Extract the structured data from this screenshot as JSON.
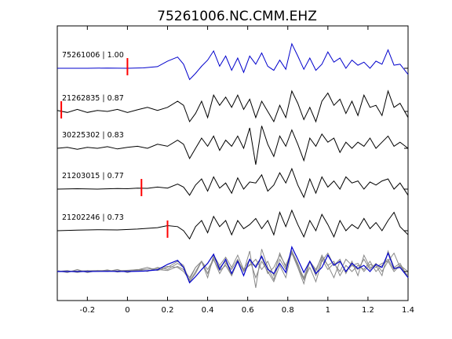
{
  "chart_data": {
    "type": "line",
    "title": "75261006.NC.CMM.EHZ",
    "xlabel": "",
    "ylabel": "",
    "xlim": [
      -0.35,
      1.4
    ],
    "xticks": [
      -0.2,
      0,
      0.2,
      0.4,
      0.6,
      0.8,
      1,
      1.2,
      1.4
    ],
    "xtick_labels": [
      "-0.2",
      "0",
      "0.2",
      "0.4",
      "0.6",
      "0.8",
      "1",
      "1.2",
      "1.4"
    ],
    "grid": false,
    "legend": "none",
    "colors": {
      "primary": "#0000cc",
      "trace": "#000000",
      "overlay": "#888888",
      "pick": "#ff0000"
    },
    "series": [
      {
        "label": "75261006 | 1.00",
        "pick": 0.0,
        "color": "#0000cc",
        "x": [
          -0.35,
          -0.2,
          -0.1,
          0,
          0.08,
          0.15,
          0.2,
          0.25,
          0.28,
          0.31,
          0.34,
          0.37,
          0.4,
          0.43,
          0.46,
          0.49,
          0.52,
          0.55,
          0.58,
          0.61,
          0.64,
          0.67,
          0.7,
          0.73,
          0.76,
          0.79,
          0.82,
          0.85,
          0.88,
          0.91,
          0.94,
          0.97,
          1,
          1.03,
          1.06,
          1.09,
          1.12,
          1.15,
          1.18,
          1.21,
          1.24,
          1.27,
          1.3,
          1.33,
          1.36,
          1.4
        ],
        "y": [
          0,
          0,
          0.01,
          0,
          0.02,
          0.08,
          0.35,
          0.55,
          0.2,
          -0.55,
          -0.25,
          0.1,
          0.4,
          0.85,
          0.1,
          0.6,
          -0.1,
          0.5,
          -0.2,
          0.6,
          0.2,
          0.75,
          0.1,
          -0.1,
          0.4,
          -0.05,
          1.2,
          0.6,
          -0.05,
          0.5,
          -0.1,
          0.2,
          0.8,
          0.3,
          0.5,
          0.0,
          0.4,
          0.15,
          0.3,
          0.0,
          0.35,
          0.2,
          0.9,
          0.15,
          0.2,
          -0.3
        ]
      },
      {
        "label": "21262835 | 0.87",
        "pick": -0.33,
        "color": "#000000",
        "x": [
          -0.35,
          -0.3,
          -0.25,
          -0.2,
          -0.15,
          -0.1,
          -0.05,
          0,
          0.05,
          0.1,
          0.15,
          0.2,
          0.25,
          0.28,
          0.31,
          0.34,
          0.37,
          0.4,
          0.43,
          0.46,
          0.49,
          0.52,
          0.55,
          0.58,
          0.61,
          0.64,
          0.67,
          0.7,
          0.73,
          0.76,
          0.79,
          0.82,
          0.85,
          0.88,
          0.91,
          0.94,
          0.97,
          1,
          1.03,
          1.06,
          1.09,
          1.12,
          1.15,
          1.18,
          1.21,
          1.24,
          1.27,
          1.3,
          1.33,
          1.36,
          1.4
        ],
        "y": [
          0.05,
          -0.05,
          0.1,
          -0.05,
          0.05,
          0.0,
          0.1,
          -0.05,
          0.08,
          0.2,
          0.05,
          0.2,
          0.5,
          0.3,
          -0.5,
          -0.1,
          0.5,
          -0.3,
          0.8,
          0.3,
          0.7,
          0.2,
          0.8,
          0.1,
          0.6,
          -0.3,
          0.5,
          0.0,
          -0.5,
          0.3,
          -0.3,
          1.0,
          0.4,
          -0.4,
          0.2,
          -0.5,
          0.5,
          0.9,
          0.3,
          0.6,
          -0.1,
          0.5,
          -0.2,
          0.8,
          0.2,
          0.3,
          -0.2,
          1.0,
          0.2,
          0.4,
          -0.3
        ]
      },
      {
        "label": "30225302 | 0.83",
        "pick": null,
        "color": "#000000",
        "x": [
          -0.35,
          -0.3,
          -0.25,
          -0.2,
          -0.15,
          -0.1,
          -0.05,
          0,
          0.05,
          0.1,
          0.15,
          0.2,
          0.25,
          0.28,
          0.31,
          0.34,
          0.37,
          0.4,
          0.43,
          0.46,
          0.49,
          0.52,
          0.55,
          0.58,
          0.61,
          0.64,
          0.67,
          0.7,
          0.73,
          0.76,
          0.79,
          0.82,
          0.85,
          0.88,
          0.91,
          0.94,
          0.97,
          1,
          1.03,
          1.06,
          1.09,
          1.12,
          1.15,
          1.18,
          1.21,
          1.24,
          1.27,
          1.3,
          1.33,
          1.36,
          1.4
        ],
        "y": [
          0,
          0.05,
          -0.05,
          0.05,
          0.0,
          0.08,
          -0.03,
          0.05,
          0.1,
          0.0,
          0.2,
          0.1,
          0.4,
          0.2,
          -0.5,
          0.0,
          0.5,
          0.1,
          0.6,
          -0.1,
          0.4,
          0.1,
          0.6,
          0.0,
          1.0,
          -0.8,
          1.1,
          0.2,
          -0.4,
          0.6,
          0.1,
          0.9,
          0.2,
          -0.6,
          0.5,
          0.1,
          0.7,
          0.3,
          0.5,
          -0.2,
          0.3,
          0.0,
          0.3,
          0.1,
          0.5,
          0.0,
          0.3,
          0.6,
          0.1,
          0.3,
          0.0
        ]
      },
      {
        "label": "21203015 | 0.77",
        "pick": 0.07,
        "color": "#000000",
        "x": [
          -0.35,
          -0.25,
          -0.15,
          -0.05,
          0,
          0.05,
          0.1,
          0.15,
          0.2,
          0.25,
          0.28,
          0.31,
          0.34,
          0.37,
          0.4,
          0.43,
          0.46,
          0.49,
          0.52,
          0.55,
          0.58,
          0.61,
          0.64,
          0.67,
          0.7,
          0.73,
          0.76,
          0.79,
          0.82,
          0.85,
          0.88,
          0.91,
          0.94,
          0.97,
          1,
          1.03,
          1.06,
          1.09,
          1.12,
          1.15,
          1.18,
          1.21,
          1.24,
          1.27,
          1.3,
          1.33,
          1.36,
          1.4
        ],
        "y": [
          0,
          0.02,
          0.0,
          0.03,
          0.02,
          0.05,
          0.04,
          0.1,
          0.05,
          0.25,
          0.1,
          -0.3,
          0.2,
          0.5,
          -0.1,
          0.6,
          0.05,
          0.3,
          -0.2,
          0.55,
          0.0,
          0.35,
          0.3,
          0.7,
          -0.1,
          0.2,
          0.8,
          0.3,
          1.0,
          0.2,
          -0.4,
          0.5,
          -0.2,
          0.6,
          0.1,
          0.4,
          0.0,
          0.6,
          0.3,
          0.4,
          0.0,
          0.35,
          0.2,
          0.4,
          0.5,
          0.0,
          0.3,
          -0.3
        ]
      },
      {
        "label": "21202246 | 0.73",
        "pick": 0.2,
        "color": "#000000",
        "x": [
          -0.35,
          -0.25,
          -0.15,
          -0.05,
          0.05,
          0.15,
          0.2,
          0.25,
          0.28,
          0.31,
          0.34,
          0.37,
          0.4,
          0.43,
          0.46,
          0.49,
          0.52,
          0.55,
          0.58,
          0.61,
          0.64,
          0.67,
          0.7,
          0.73,
          0.76,
          0.79,
          0.82,
          0.85,
          0.88,
          0.91,
          0.94,
          0.97,
          1,
          1.03,
          1.06,
          1.09,
          1.12,
          1.15,
          1.18,
          1.21,
          1.24,
          1.27,
          1.3,
          1.33,
          1.36,
          1.4
        ],
        "y": [
          0,
          0.03,
          0.05,
          0.04,
          0.08,
          0.15,
          0.25,
          0.2,
          0.0,
          -0.4,
          0.2,
          0.5,
          -0.1,
          0.7,
          0.2,
          0.5,
          -0.2,
          0.5,
          0.1,
          0.3,
          0.6,
          0.1,
          0.5,
          -0.2,
          0.9,
          0.2,
          1.0,
          0.3,
          -0.3,
          0.5,
          0.0,
          0.8,
          0.3,
          -0.3,
          0.5,
          0.0,
          0.3,
          0.1,
          0.6,
          0.1,
          0.4,
          0.0,
          0.5,
          0.9,
          0.2,
          -0.2
        ]
      }
    ]
  }
}
